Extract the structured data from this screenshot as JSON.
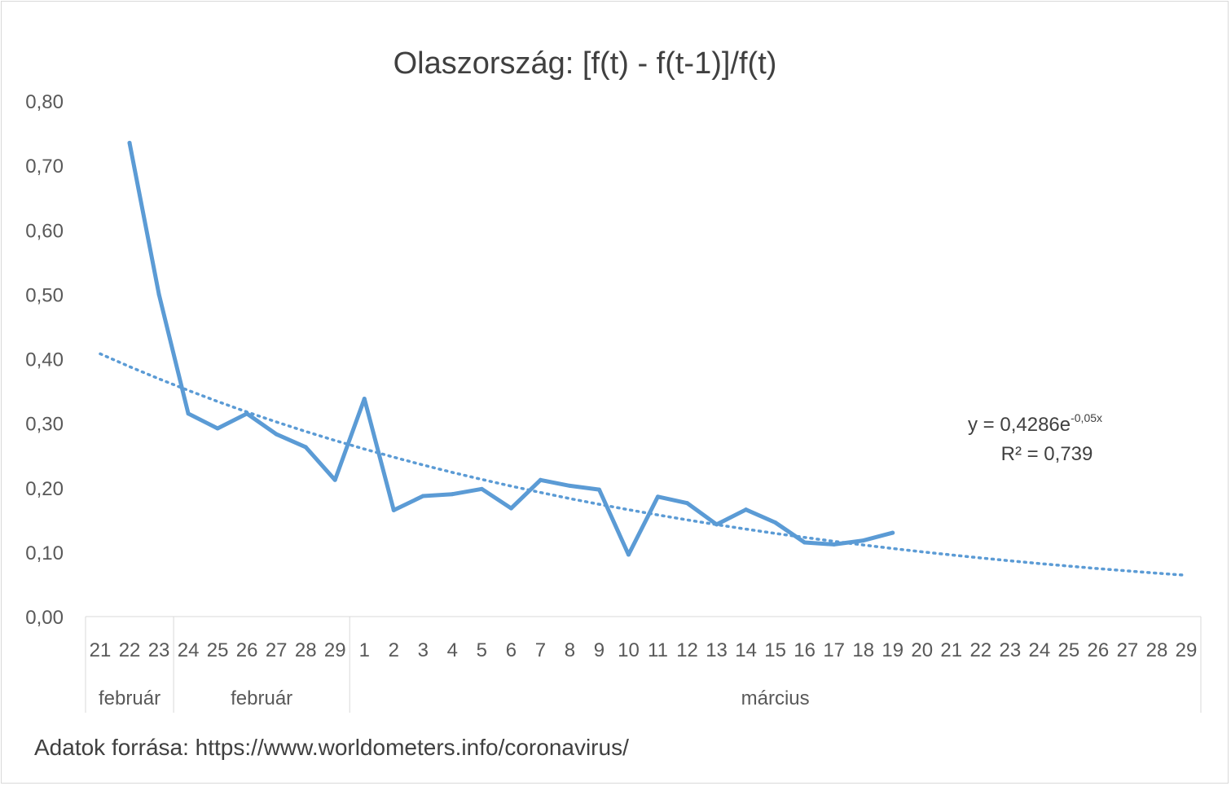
{
  "chart_data": {
    "type": "line",
    "title": "Olaszország: [f(t) - f(t-1)]/f(t)",
    "xlabel": "",
    "ylabel": "",
    "ylim": [
      0,
      0.8
    ],
    "y_ticks": [
      "0,00",
      "0,10",
      "0,20",
      "0,30",
      "0,40",
      "0,50",
      "0,60",
      "0,70",
      "0,80"
    ],
    "grid": false,
    "categories": [
      "21",
      "22",
      "23",
      "24",
      "25",
      "26",
      "27",
      "28",
      "29",
      "1",
      "2",
      "3",
      "4",
      "5",
      "6",
      "7",
      "8",
      "9",
      "10",
      "11",
      "12",
      "13",
      "14",
      "15",
      "16",
      "17",
      "18",
      "19",
      "20",
      "21",
      "22",
      "23",
      "24",
      "25",
      "26",
      "27",
      "28",
      "29"
    ],
    "groups": [
      {
        "label": "február",
        "start": 0,
        "end": 2
      },
      {
        "label": "február",
        "start": 3,
        "end": 8
      },
      {
        "label": "március",
        "start": 9,
        "end": 37
      }
    ],
    "series": [
      {
        "type": "line",
        "color": "#5b9bd5",
        "values": [
          null,
          0.735,
          0.5,
          0.315,
          0.292,
          0.315,
          0.283,
          0.263,
          0.212,
          0.338,
          0.165,
          0.187,
          0.19,
          0.198,
          0.168,
          0.212,
          0.203,
          0.197,
          0.096,
          0.186,
          0.176,
          0.143,
          0.166,
          0.146,
          0.115,
          0.112,
          0.118,
          0.13,
          null,
          null,
          null,
          null,
          null,
          null,
          null,
          null,
          null,
          null
        ]
      },
      {
        "type": "trendline-exponential",
        "color": "#5b9bd5",
        "coef_a": 0.4286,
        "coef_b": -0.05
      }
    ],
    "annotations": {
      "equation_prefix": "y = 0,4286e",
      "equation_exponent": "-0,05x",
      "r_squared": "R² = 0,739"
    }
  },
  "footer": {
    "source": "Adatok forrása: https://www.worldometers.info/coronavirus/"
  }
}
